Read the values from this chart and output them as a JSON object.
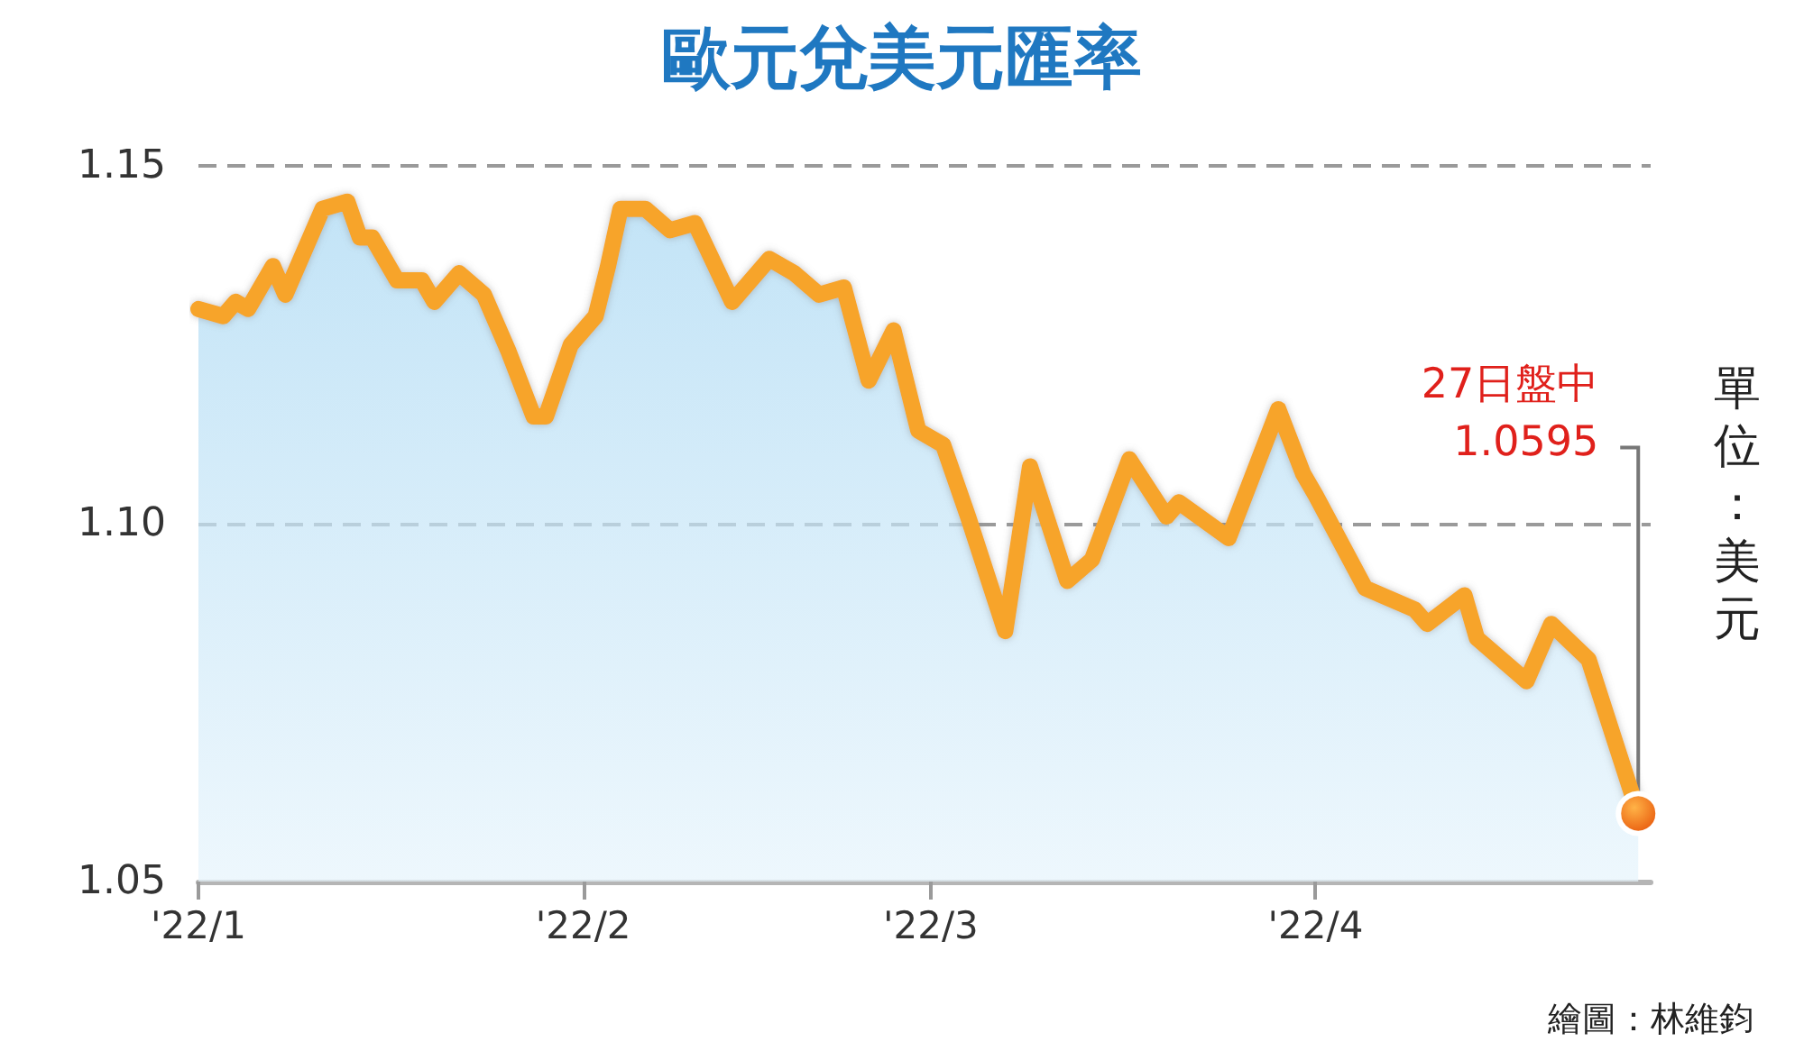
{
  "chart_data": {
    "type": "area",
    "title": "歐元兌美元匯率",
    "ylabel": "單位：美元",
    "x": [
      "2022-01-01",
      "2022-01-03",
      "2022-01-04",
      "2022-01-05",
      "2022-01-07",
      "2022-01-08",
      "2022-01-11",
      "2022-01-13",
      "2022-01-14",
      "2022-01-15",
      "2022-01-17",
      "2022-01-19",
      "2022-01-20",
      "2022-01-22",
      "2022-01-24",
      "2022-01-26",
      "2022-01-28",
      "2022-01-29",
      "2022-01-31",
      "2022-02-02",
      "2022-02-03",
      "2022-02-04",
      "2022-02-06",
      "2022-02-08",
      "2022-02-10",
      "2022-02-13",
      "2022-02-16",
      "2022-02-18",
      "2022-02-20",
      "2022-02-22",
      "2022-02-24",
      "2022-02-26",
      "2022-02-28",
      "2022-03-02",
      "2022-03-04",
      "2022-03-07",
      "2022-03-09",
      "2022-03-12",
      "2022-03-14",
      "2022-03-17",
      "2022-03-20",
      "2022-03-21",
      "2022-03-25",
      "2022-03-29",
      "2022-03-31",
      "2022-04-01",
      "2022-04-05",
      "2022-04-09",
      "2022-04-10",
      "2022-04-13",
      "2022-04-14",
      "2022-04-18",
      "2022-04-20",
      "2022-04-23",
      "2022-04-27"
    ],
    "series": [
      {
        "color": "#f7a42c",
        "values": [
          1.13,
          1.129,
          1.131,
          1.13,
          1.136,
          1.132,
          1.144,
          1.145,
          1.14,
          1.14,
          1.134,
          1.134,
          1.131,
          1.135,
          1.132,
          1.124,
          1.115,
          1.115,
          1.125,
          1.129,
          1.136,
          1.144,
          1.144,
          1.141,
          1.142,
          1.131,
          1.137,
          1.135,
          1.132,
          1.133,
          1.12,
          1.127,
          1.113,
          1.111,
          1.101,
          1.085,
          1.108,
          1.092,
          1.095,
          1.109,
          1.101,
          1.103,
          1.098,
          1.116,
          1.107,
          1.104,
          1.091,
          1.088,
          1.086,
          1.09,
          1.084,
          1.078,
          1.086,
          1.081,
          1.0595
        ]
      }
    ],
    "xlim": [
      "2022-01-01",
      "2022-04-28"
    ],
    "xticks": [
      {
        "value": "2022-01-01",
        "label": "'22/1"
      },
      {
        "value": "2022-02-01",
        "label": "'22/2"
      },
      {
        "value": "2022-03-01",
        "label": "'22/3"
      },
      {
        "value": "2022-04-01",
        "label": "'22/4"
      }
    ],
    "ylim": [
      1.05,
      1.15
    ],
    "yticks": [
      1.05,
      {
        "value": 1.1,
        "label": "1.10"
      },
      1.15
    ],
    "grid": "y",
    "annotations": [
      {
        "text": "27日盤中\n1.0595",
        "x": "2022-04-27",
        "y": 1.0595
      },
      "繪圖：林維鈞"
    ]
  }
}
